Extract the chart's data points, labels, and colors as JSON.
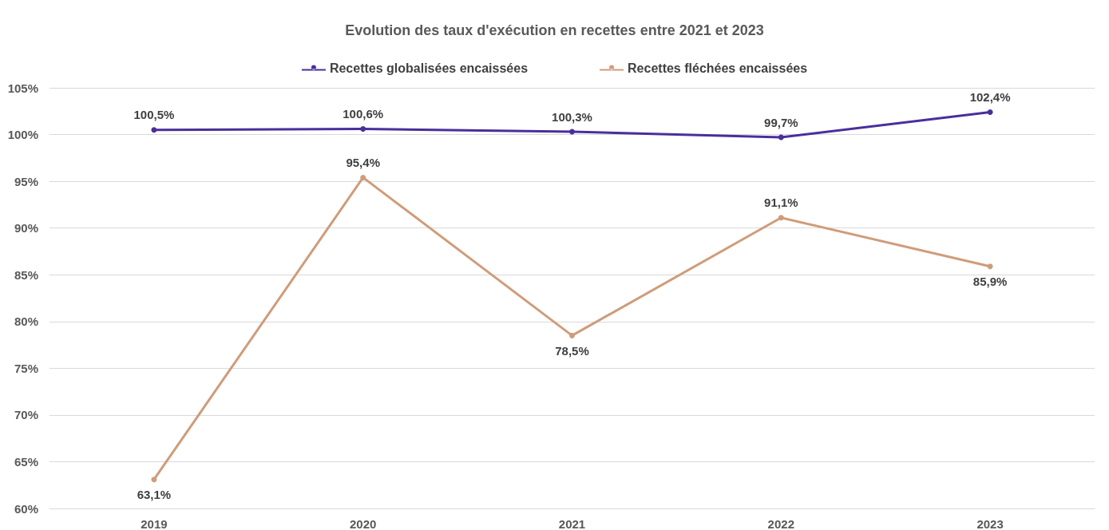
{
  "chart_data": {
    "type": "line",
    "title": "Evolution des taux d'exécution en recettes entre 2021 et 2023",
    "categories": [
      "2019",
      "2020",
      "2021",
      "2022",
      "2023"
    ],
    "series": [
      {
        "name": "Recettes globalisées encaissées",
        "color": "#4b2e9c",
        "values": [
          100.5,
          100.6,
          100.3,
          99.7,
          102.4
        ],
        "value_labels": [
          "100,5%",
          "100,6%",
          "100,3%",
          "99,7%",
          "102,4%"
        ]
      },
      {
        "name": "Recettes fléchées encaissées",
        "color": "#d09c7a",
        "values": [
          63.1,
          95.4,
          78.5,
          91.1,
          85.9
        ],
        "value_labels": [
          "63,1%",
          "95,4%",
          "78,5%",
          "91,1%",
          "85,9%"
        ]
      }
    ],
    "ylim": [
      60,
      105
    ],
    "yticks": [
      {
        "value": 60,
        "label": "60%"
      },
      {
        "value": 65,
        "label": "65%"
      },
      {
        "value": 70,
        "label": "70%"
      },
      {
        "value": 75,
        "label": "75%"
      },
      {
        "value": 80,
        "label": "80%"
      },
      {
        "value": 85,
        "label": "85%"
      },
      {
        "value": 90,
        "label": "90%"
      },
      {
        "value": 95,
        "label": "95%"
      },
      {
        "value": 100,
        "label": "100%"
      },
      {
        "value": 105,
        "label": "105%"
      }
    ],
    "grid": "y",
    "legend": "top",
    "marker": "circle",
    "line_style": "solid"
  }
}
